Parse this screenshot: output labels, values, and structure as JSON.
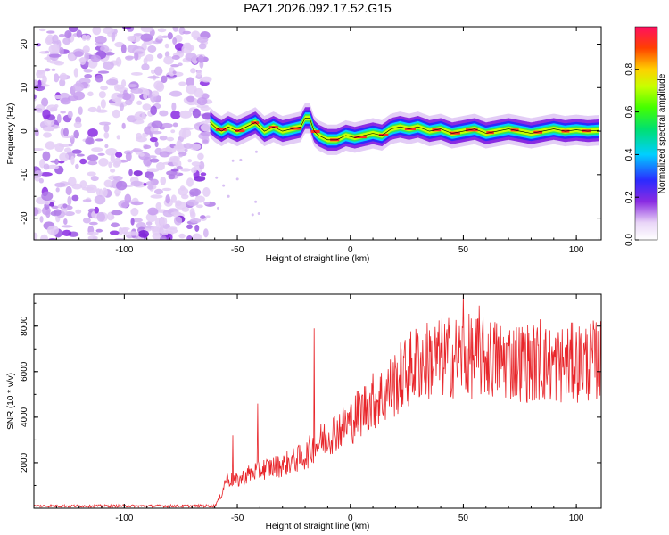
{
  "title": "PAZ1.2026.092.17.52.G15",
  "chart_data": [
    {
      "type": "heatmap",
      "name": "spectrogram",
      "xlabel": "Height of straight line (km)",
      "ylabel": "Frequency (Hz)",
      "xlim": [
        -140,
        111
      ],
      "ylim": [
        -25,
        24
      ],
      "xticks": [
        "-100",
        "-50",
        "0",
        "50",
        "100"
      ],
      "xtick_values": [
        -100,
        -50,
        0,
        50,
        100
      ],
      "yticks": [
        "-20",
        "-10",
        "0",
        "10",
        "20"
      ],
      "ytick_values": [
        -20,
        -10,
        0,
        10,
        20
      ],
      "noise_region_x": [
        -140,
        -62
      ],
      "ridge": {
        "x": [
          -62,
          -60,
          -57,
          -54,
          -50,
          -46,
          -42,
          -38,
          -34,
          -30,
          -26,
          -22,
          -20,
          -18,
          -16,
          -14,
          -10,
          -6,
          -2,
          2,
          6,
          10,
          14,
          18,
          22,
          26,
          30,
          35,
          40,
          45,
          50,
          55,
          60,
          65,
          70,
          75,
          80,
          85,
          90,
          95,
          100,
          105,
          110
        ],
        "freq": [
          2,
          1,
          0,
          1,
          0,
          1,
          2,
          0,
          1,
          0,
          0.5,
          1,
          3,
          3,
          0,
          -1,
          -2,
          -2,
          -1,
          -1.5,
          -1,
          -0.5,
          -1,
          0.5,
          1,
          0.5,
          1,
          0,
          0.5,
          -0.5,
          0,
          0.5,
          -0.5,
          0,
          0.5,
          0,
          -0.5,
          0,
          0.5,
          0,
          0.3,
          0,
          0.2
        ]
      },
      "colorbar": {
        "label": "Normalized spectral amplitude",
        "range": [
          0,
          1
        ],
        "ticks": [
          "0.0",
          "0.2",
          "0.4",
          "0.6",
          "0.8"
        ],
        "tick_values": [
          0,
          0.2,
          0.4,
          0.6,
          0.8
        ]
      }
    },
    {
      "type": "line",
      "name": "snr",
      "xlabel": "Height of straight line (km)",
      "ylabel": "SNR (10 * v/v)",
      "xlim": [
        -140,
        111
      ],
      "ylim": [
        0,
        9400
      ],
      "xticks": [
        "-100",
        "-50",
        "0",
        "50",
        "100"
      ],
      "xtick_values": [
        -100,
        -50,
        0,
        50,
        100
      ],
      "yticks": [
        "2000",
        "4000",
        "6000",
        "8000"
      ],
      "ytick_values": [
        2000,
        4000,
        6000,
        8000
      ],
      "color": "#e8262b",
      "envelope": {
        "x": [
          -140,
          -60,
          -57,
          -55,
          -50,
          -45,
          -40,
          -35,
          -30,
          -25,
          -20,
          -15,
          -10,
          -5,
          0,
          5,
          10,
          15,
          20,
          25,
          30,
          40,
          50,
          60,
          70,
          80,
          90,
          100,
          110
        ],
        "value": [
          100,
          100,
          600,
          1300,
          1200,
          1500,
          1700,
          1800,
          1900,
          2100,
          2300,
          2800,
          3200,
          3500,
          3800,
          4300,
          4700,
          5000,
          5500,
          6000,
          6400,
          6600,
          6700,
          6600,
          6500,
          6400,
          6300,
          6400,
          6500
        ]
      },
      "spikes": [
        {
          "x": -52,
          "value": 3200
        },
        {
          "x": -41,
          "value": 4600
        },
        {
          "x": -16,
          "value": 7900
        },
        {
          "x": 50,
          "value": 9400
        },
        {
          "x": 57,
          "value": 8900
        },
        {
          "x": 84,
          "value": 8300
        },
        {
          "x": 106,
          "value": 7200
        }
      ]
    }
  ]
}
